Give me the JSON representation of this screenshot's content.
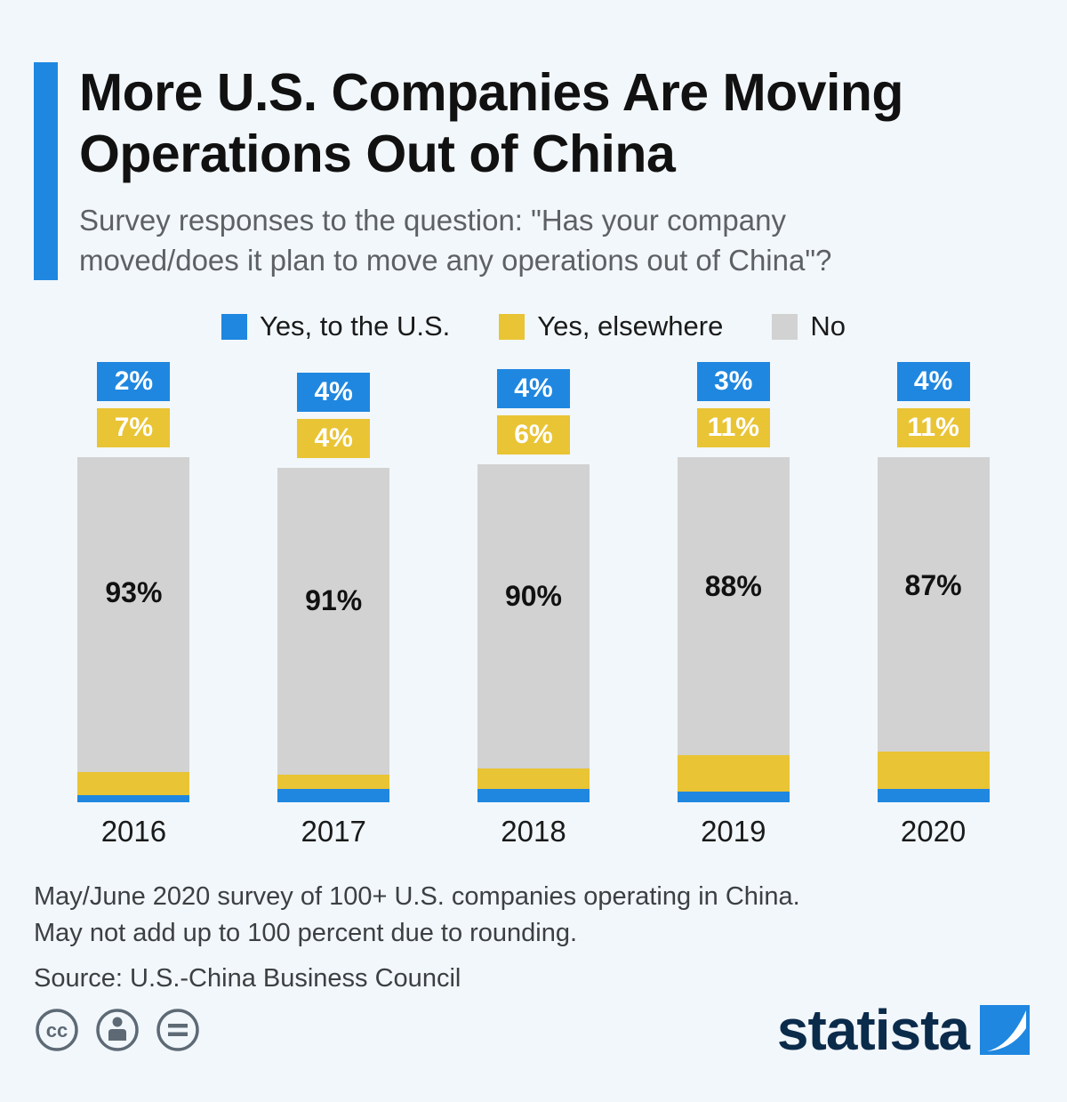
{
  "header": {
    "title_line1": "More U.S. Companies Are Moving",
    "title_line2": "Operations Out of China",
    "subtitle_line1": "Survey responses to the question: \"Has your company",
    "subtitle_line2": "moved/does it plan to move any operations out of China\"?"
  },
  "legend": [
    {
      "label": "Yes, to the U.S.",
      "color": "#1f87e0"
    },
    {
      "label": "Yes, elsewhere",
      "color": "#e9c435"
    },
    {
      "label": "No",
      "color": "#d2d2d2"
    }
  ],
  "chart_data": {
    "type": "bar",
    "stacked": true,
    "categories": [
      "2016",
      "2017",
      "2018",
      "2019",
      "2020"
    ],
    "series": [
      {
        "name": "Yes, to the U.S.",
        "color": "#1f87e0",
        "values": [
          2,
          4,
          4,
          3,
          4
        ]
      },
      {
        "name": "Yes, elsewhere",
        "color": "#e9c435",
        "values": [
          7,
          4,
          6,
          11,
          11
        ]
      },
      {
        "name": "No",
        "color": "#d2d2d2",
        "values": [
          93,
          91,
          90,
          88,
          87
        ]
      }
    ],
    "value_suffix": "%",
    "ylim": [
      0,
      102
    ],
    "legend_position": "top",
    "grid": false
  },
  "footer": {
    "note_line1": "May/June 2020 survey of 100+ U.S. companies operating in China.",
    "note_line2": "May not add up to 100 percent due to rounding.",
    "source": "Source: U.S.-China Business Council"
  },
  "branding": {
    "logo_text": "statista",
    "logo_color": "#0b2b4b",
    "logo_accent": "#1f87e0"
  },
  "license": {
    "icons": [
      "cc-icon",
      "attribution-person-icon",
      "equals-no-derivatives-icon"
    ],
    "icon_color": "#5d6a76"
  }
}
